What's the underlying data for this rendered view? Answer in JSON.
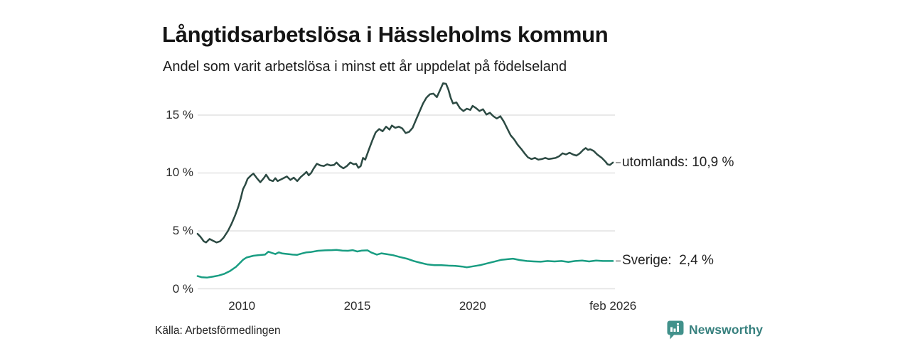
{
  "header": {
    "title": "Långtidsarbetslösa i Hässleholms kommun",
    "subtitle": "Andel som varit arbetslösa i minst ett år uppdelat på födelseland"
  },
  "footer": {
    "source": "Källa: Arbetsförmedlingen",
    "brand": "Newsworthy",
    "brand_icon": "speech-bubble-bar-chart"
  },
  "colors": {
    "utomlands_line": "#2c4a43",
    "sverige_line": "#199d82",
    "grid": "#e2e2e2",
    "axis_text": "#2a2a2a",
    "label_text": "#222222",
    "connector": "#999999",
    "brand_teal": "#37807e",
    "brand_icon_fill": "#41918b"
  },
  "chart_data": {
    "type": "line",
    "title": "Långtidsarbetslösa i Hässleholms kommun",
    "subtitle": "Andel som varit arbetslösa i minst ett år uppdelat på födelseland",
    "xlabel": "",
    "ylabel": "",
    "xlim": [
      2008.083,
      2026.17
    ],
    "ylim": [
      0,
      18.3
    ],
    "grid": "horizontal",
    "legend_position": "line-end-labels",
    "y_ticks": [
      {
        "label": "15 %",
        "value": 15
      },
      {
        "label": "10 %",
        "value": 10
      },
      {
        "label": "5 %",
        "value": 5
      },
      {
        "label": "0 %",
        "value": 0
      }
    ],
    "x_ticks": [
      {
        "label": "2010",
        "year": 2010
      },
      {
        "label": "2015",
        "year": 2015
      },
      {
        "label": "2020",
        "year": 2020
      },
      {
        "label": "feb 2026",
        "year": 2026.083
      }
    ],
    "series": [
      {
        "name": "utomlands",
        "end_label": "utomlands: 10,9 %",
        "end_value_text": "10,9 %",
        "color": "#2c4a43",
        "points": [
          [
            2008.08,
            4.75
          ],
          [
            2008.2,
            4.5
          ],
          [
            2008.35,
            4.1
          ],
          [
            2008.45,
            4.0
          ],
          [
            2008.6,
            4.3
          ],
          [
            2008.75,
            4.15
          ],
          [
            2008.9,
            4.0
          ],
          [
            2009.05,
            4.1
          ],
          [
            2009.2,
            4.4
          ],
          [
            2009.4,
            5.0
          ],
          [
            2009.55,
            5.6
          ],
          [
            2009.7,
            6.3
          ],
          [
            2009.85,
            7.1
          ],
          [
            2009.95,
            7.8
          ],
          [
            2010.05,
            8.6
          ],
          [
            2010.15,
            9.0
          ],
          [
            2010.25,
            9.5
          ],
          [
            2010.4,
            9.8
          ],
          [
            2010.5,
            9.95
          ],
          [
            2010.65,
            9.55
          ],
          [
            2010.8,
            9.2
          ],
          [
            2010.95,
            9.55
          ],
          [
            2011.05,
            9.85
          ],
          [
            2011.2,
            9.4
          ],
          [
            2011.35,
            9.3
          ],
          [
            2011.45,
            9.55
          ],
          [
            2011.55,
            9.3
          ],
          [
            2011.7,
            9.45
          ],
          [
            2011.85,
            9.6
          ],
          [
            2011.95,
            9.7
          ],
          [
            2012.1,
            9.4
          ],
          [
            2012.25,
            9.6
          ],
          [
            2012.4,
            9.3
          ],
          [
            2012.55,
            9.65
          ],
          [
            2012.7,
            9.9
          ],
          [
            2012.8,
            10.1
          ],
          [
            2012.9,
            9.8
          ],
          [
            2013.0,
            10.0
          ],
          [
            2013.1,
            10.35
          ],
          [
            2013.25,
            10.8
          ],
          [
            2013.4,
            10.65
          ],
          [
            2013.55,
            10.6
          ],
          [
            2013.7,
            10.75
          ],
          [
            2013.85,
            10.65
          ],
          [
            2014.0,
            10.7
          ],
          [
            2014.1,
            10.9
          ],
          [
            2014.25,
            10.6
          ],
          [
            2014.4,
            10.4
          ],
          [
            2014.55,
            10.6
          ],
          [
            2014.7,
            10.9
          ],
          [
            2014.85,
            10.75
          ],
          [
            2014.95,
            10.8
          ],
          [
            2015.05,
            10.45
          ],
          [
            2015.15,
            10.6
          ],
          [
            2015.25,
            11.3
          ],
          [
            2015.35,
            11.15
          ],
          [
            2015.5,
            12.0
          ],
          [
            2015.65,
            12.8
          ],
          [
            2015.8,
            13.5
          ],
          [
            2015.95,
            13.8
          ],
          [
            2016.1,
            13.6
          ],
          [
            2016.25,
            14.0
          ],
          [
            2016.4,
            13.75
          ],
          [
            2016.5,
            14.1
          ],
          [
            2016.65,
            13.9
          ],
          [
            2016.8,
            14.0
          ],
          [
            2016.95,
            13.85
          ],
          [
            2017.1,
            13.45
          ],
          [
            2017.25,
            13.55
          ],
          [
            2017.4,
            13.9
          ],
          [
            2017.55,
            14.6
          ],
          [
            2017.7,
            15.3
          ],
          [
            2017.85,
            16.0
          ],
          [
            2018.0,
            16.5
          ],
          [
            2018.15,
            16.8
          ],
          [
            2018.3,
            16.85
          ],
          [
            2018.45,
            16.55
          ],
          [
            2018.6,
            17.2
          ],
          [
            2018.72,
            17.75
          ],
          [
            2018.85,
            17.7
          ],
          [
            2018.95,
            17.2
          ],
          [
            2019.05,
            16.5
          ],
          [
            2019.15,
            16.0
          ],
          [
            2019.3,
            16.1
          ],
          [
            2019.45,
            15.6
          ],
          [
            2019.6,
            15.35
          ],
          [
            2019.75,
            15.55
          ],
          [
            2019.9,
            15.45
          ],
          [
            2020.0,
            15.8
          ],
          [
            2020.15,
            15.6
          ],
          [
            2020.3,
            15.35
          ],
          [
            2020.45,
            15.5
          ],
          [
            2020.6,
            15.05
          ],
          [
            2020.75,
            15.2
          ],
          [
            2020.9,
            14.9
          ],
          [
            2021.05,
            14.7
          ],
          [
            2021.2,
            14.9
          ],
          [
            2021.35,
            14.45
          ],
          [
            2021.5,
            13.85
          ],
          [
            2021.65,
            13.25
          ],
          [
            2021.8,
            12.9
          ],
          [
            2021.95,
            12.45
          ],
          [
            2022.1,
            12.1
          ],
          [
            2022.25,
            11.7
          ],
          [
            2022.4,
            11.35
          ],
          [
            2022.55,
            11.2
          ],
          [
            2022.7,
            11.3
          ],
          [
            2022.85,
            11.15
          ],
          [
            2023.0,
            11.2
          ],
          [
            2023.15,
            11.3
          ],
          [
            2023.3,
            11.2
          ],
          [
            2023.45,
            11.25
          ],
          [
            2023.6,
            11.3
          ],
          [
            2023.75,
            11.45
          ],
          [
            2023.9,
            11.7
          ],
          [
            2024.05,
            11.6
          ],
          [
            2024.2,
            11.75
          ],
          [
            2024.35,
            11.6
          ],
          [
            2024.5,
            11.5
          ],
          [
            2024.65,
            11.7
          ],
          [
            2024.8,
            12.0
          ],
          [
            2024.9,
            12.15
          ],
          [
            2025.0,
            12.0
          ],
          [
            2025.1,
            12.05
          ],
          [
            2025.25,
            11.9
          ],
          [
            2025.4,
            11.6
          ],
          [
            2025.5,
            11.45
          ],
          [
            2025.6,
            11.3
          ],
          [
            2025.75,
            11.0
          ],
          [
            2025.85,
            10.75
          ],
          [
            2025.95,
            10.7
          ],
          [
            2026.08,
            10.9
          ]
        ]
      },
      {
        "name": "Sverige",
        "end_label": "Sverige:  2,4 %",
        "end_value_text": "2,4 %",
        "color": "#199d82",
        "points": [
          [
            2008.08,
            1.1
          ],
          [
            2008.25,
            1.0
          ],
          [
            2008.5,
            0.97
          ],
          [
            2008.75,
            1.05
          ],
          [
            2009.0,
            1.15
          ],
          [
            2009.25,
            1.3
          ],
          [
            2009.5,
            1.55
          ],
          [
            2009.75,
            1.9
          ],
          [
            2009.9,
            2.2
          ],
          [
            2010.05,
            2.5
          ],
          [
            2010.2,
            2.7
          ],
          [
            2010.5,
            2.85
          ],
          [
            2010.7,
            2.9
          ],
          [
            2011.0,
            2.95
          ],
          [
            2011.15,
            3.2
          ],
          [
            2011.3,
            3.1
          ],
          [
            2011.45,
            3.0
          ],
          [
            2011.6,
            3.15
          ],
          [
            2011.75,
            3.05
          ],
          [
            2012.0,
            3.0
          ],
          [
            2012.2,
            2.95
          ],
          [
            2012.4,
            2.93
          ],
          [
            2012.6,
            3.05
          ],
          [
            2012.8,
            3.15
          ],
          [
            2013.0,
            3.18
          ],
          [
            2013.3,
            3.28
          ],
          [
            2013.6,
            3.32
          ],
          [
            2013.9,
            3.34
          ],
          [
            2014.1,
            3.36
          ],
          [
            2014.35,
            3.3
          ],
          [
            2014.6,
            3.28
          ],
          [
            2014.8,
            3.34
          ],
          [
            2015.0,
            3.22
          ],
          [
            2015.2,
            3.3
          ],
          [
            2015.45,
            3.32
          ],
          [
            2015.6,
            3.14
          ],
          [
            2015.85,
            2.95
          ],
          [
            2016.05,
            3.06
          ],
          [
            2016.25,
            3.0
          ],
          [
            2016.55,
            2.9
          ],
          [
            2016.85,
            2.74
          ],
          [
            2017.15,
            2.6
          ],
          [
            2017.45,
            2.4
          ],
          [
            2017.75,
            2.24
          ],
          [
            2018.05,
            2.1
          ],
          [
            2018.35,
            2.04
          ],
          [
            2018.65,
            2.04
          ],
          [
            2018.95,
            2.0
          ],
          [
            2019.25,
            1.98
          ],
          [
            2019.55,
            1.92
          ],
          [
            2019.75,
            1.85
          ],
          [
            2020.05,
            1.95
          ],
          [
            2020.35,
            2.05
          ],
          [
            2020.65,
            2.2
          ],
          [
            2020.95,
            2.35
          ],
          [
            2021.25,
            2.5
          ],
          [
            2021.55,
            2.56
          ],
          [
            2021.75,
            2.6
          ],
          [
            2022.05,
            2.48
          ],
          [
            2022.35,
            2.4
          ],
          [
            2022.65,
            2.36
          ],
          [
            2022.95,
            2.34
          ],
          [
            2023.25,
            2.4
          ],
          [
            2023.55,
            2.36
          ],
          [
            2023.85,
            2.4
          ],
          [
            2024.15,
            2.32
          ],
          [
            2024.45,
            2.4
          ],
          [
            2024.75,
            2.44
          ],
          [
            2025.05,
            2.36
          ],
          [
            2025.35,
            2.44
          ],
          [
            2025.65,
            2.4
          ],
          [
            2026.08,
            2.4
          ]
        ]
      }
    ]
  }
}
